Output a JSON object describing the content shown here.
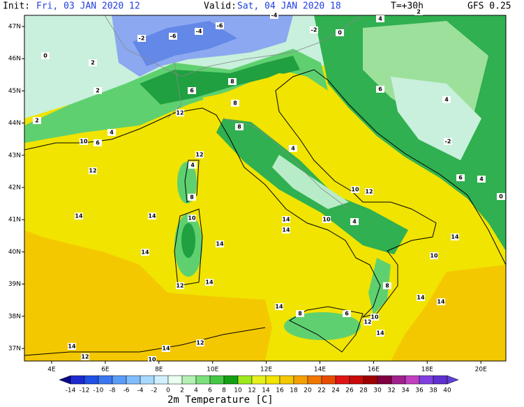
{
  "header": {
    "init_label": "Init:",
    "init_value": "Fri, 03 JAN 2020  12",
    "valid_label": "Valid:",
    "valid_value": "Sat, 04 JAN 2020  18",
    "lead": "T=+30h",
    "model": "GFS 0.25"
  },
  "axes": {
    "longitude_labels": [
      "4E",
      "6E",
      "8E",
      "10E",
      "12E",
      "14E",
      "16E",
      "18E",
      "20E"
    ],
    "latitude_labels": [
      "47N",
      "46N",
      "45N",
      "44N",
      "43N",
      "42N",
      "41N",
      "40N",
      "39N",
      "38N",
      "37N"
    ]
  },
  "colorbar": {
    "labels": [
      "-14",
      "-12",
      "-10",
      "-8",
      "-6",
      "-4",
      "-2",
      "0",
      "2",
      "4",
      "6",
      "8",
      "10",
      "12",
      "14",
      "16",
      "18",
      "20",
      "22",
      "24",
      "26",
      "28",
      "30",
      "32",
      "34",
      "36",
      "38",
      "40"
    ],
    "title": "2m Temperature [C]"
  },
  "contour_labels": [
    "2",
    "2",
    "0",
    "-2",
    "-6",
    "-4",
    "-6",
    "-4",
    "-2",
    "0",
    "4",
    "2",
    "6",
    "4",
    "-2",
    "6",
    "4",
    "0",
    "12",
    "10",
    "6",
    "4",
    "12",
    "12",
    "4",
    "8",
    "10",
    "14",
    "14",
    "14",
    "14",
    "14",
    "12",
    "14",
    "14",
    "10",
    "4",
    "10",
    "12",
    "14",
    "10",
    "14",
    "14",
    "14",
    "8",
    "6",
    "12",
    "10",
    "14",
    "8",
    "14",
    "14",
    "12",
    "12",
    "10",
    "2",
    "8",
    "8",
    "6",
    "8",
    "4"
  ]
}
